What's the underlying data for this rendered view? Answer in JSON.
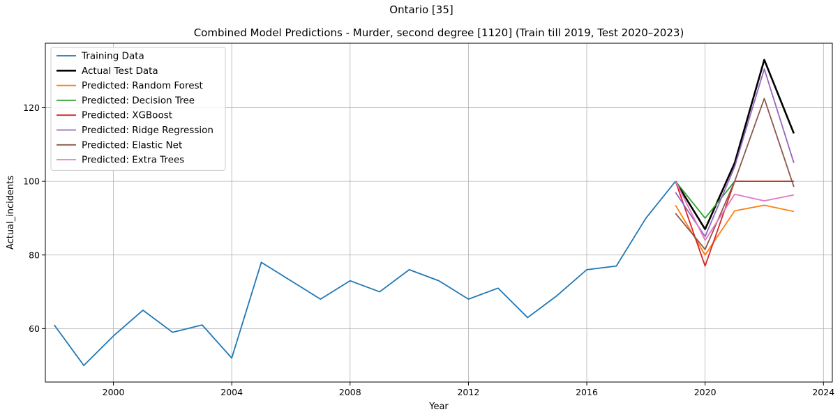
{
  "chart_data": {
    "type": "line",
    "suptitle": "Ontario [35]",
    "title": "Combined Model Predictions - Murder, second degree [1120] (Train till 2019, Test 2020–2023)",
    "xlabel": "Year",
    "ylabel": "Actual_incidents",
    "xlim": [
      1997.7,
      2024.3
    ],
    "ylim": [
      45.5,
      137.5
    ],
    "xticks": [
      2000,
      2004,
      2008,
      2012,
      2016,
      2020,
      2024
    ],
    "yticks": [
      60,
      80,
      100,
      120
    ],
    "grid": true,
    "legend_position": "upper-left",
    "series": [
      {
        "name": "Training Data",
        "color": "#1f77b4",
        "width": 1.8,
        "x": [
          1998,
          1999,
          2000,
          2001,
          2002,
          2003,
          2004,
          2005,
          2006,
          2007,
          2008,
          2009,
          2010,
          2011,
          2012,
          2013,
          2014,
          2015,
          2016,
          2017,
          2018,
          2019
        ],
        "y": [
          61,
          50,
          58,
          65,
          59,
          61,
          52,
          78,
          73,
          68,
          73,
          70,
          76,
          73,
          68,
          71,
          63,
          69,
          76,
          77,
          90,
          100
        ]
      },
      {
        "name": "Actual Test Data",
        "color": "#000000",
        "width": 2.6,
        "x": [
          2019,
          2020,
          2021,
          2022,
          2023
        ],
        "y": [
          100,
          87,
          105,
          133,
          113
        ]
      },
      {
        "name": "Predicted: Random Forest",
        "color": "#ff7f0e",
        "width": 1.8,
        "x": [
          2019,
          2020,
          2021,
          2022,
          2023
        ],
        "y": [
          93.5,
          80,
          92,
          93.5,
          91.8
        ]
      },
      {
        "name": "Predicted: Decision Tree",
        "color": "#2ca02c",
        "width": 1.8,
        "x": [
          2019,
          2020,
          2021,
          2022,
          2023
        ],
        "y": [
          100,
          90,
          100,
          100,
          100
        ]
      },
      {
        "name": "Predicted: XGBoost",
        "color": "#d62728",
        "width": 1.8,
        "x": [
          2019,
          2020,
          2021,
          2022,
          2023
        ],
        "y": [
          100,
          77,
          100,
          100,
          100
        ]
      },
      {
        "name": "Predicted: Ridge Regression",
        "color": "#9467bd",
        "width": 1.8,
        "x": [
          2019,
          2020,
          2021,
          2022,
          2023
        ],
        "y": [
          97,
          85,
          104,
          130.5,
          105
        ]
      },
      {
        "name": "Predicted: Elastic Net",
        "color": "#8c564b",
        "width": 1.8,
        "x": [
          2019,
          2020,
          2021,
          2022,
          2023
        ],
        "y": [
          91.3,
          81.5,
          100,
          122.5,
          98.5
        ]
      },
      {
        "name": "Predicted: Extra Trees",
        "color": "#e377c2",
        "width": 1.8,
        "x": [
          2019,
          2020,
          2021,
          2022,
          2023
        ],
        "y": [
          100,
          84,
          96.5,
          94.7,
          96.3
        ]
      }
    ]
  }
}
